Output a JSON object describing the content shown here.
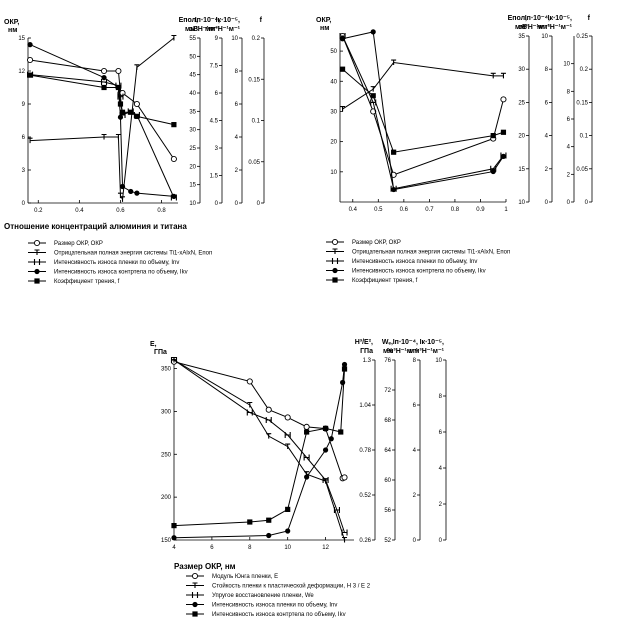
{
  "chart_data": [
    {
      "type": "line",
      "x": [
        0.16,
        0.52,
        0.59,
        0.6,
        0.61,
        0.65,
        0.68,
        0.86
      ],
      "xlabel": "Отношение концентраций алюминия и титана",
      "xticks": [
        0.2,
        0.4,
        0.6,
        0.8
      ],
      "xlim": [
        0.15,
        0.88
      ],
      "axes": [
        {
          "id": "okr",
          "label": "ОКР,",
          "unit": "нм",
          "ylim": [
            0,
            15
          ],
          "ticks": [
            0,
            3,
            6,
            9,
            12,
            15
          ]
        },
        {
          "id": "enop",
          "label": "Eпол,",
          "unit": "эВ",
          "ylim": [
            10,
            55
          ],
          "ticks": [
            10,
            15,
            20,
            25,
            30,
            35,
            40,
            45,
            50,
            55
          ]
        },
        {
          "id": "inv",
          "label": "Iп⋅10⁻⁴,",
          "unit": "мм³Н⁻¹м⁻¹",
          "ylim": [
            0,
            9
          ],
          "ticks": [
            0,
            1.5,
            3,
            4.5,
            6,
            7.5,
            9
          ]
        },
        {
          "id": "ikv",
          "label": "Iк⋅10⁻⁵,",
          "unit": "мм³Н⁻¹м⁻¹",
          "ylim": [
            0,
            10
          ],
          "ticks": [
            0,
            2,
            4,
            6,
            8,
            10
          ]
        },
        {
          "id": "f",
          "label": "f",
          "unit": "",
          "ylim": [
            0,
            0.2
          ],
          "ticks": [
            0,
            0.05,
            0.1,
            0.15,
            0.2
          ]
        }
      ],
      "series": [
        {
          "name": "Размер ОКР, ОКР",
          "axis": "okr",
          "marker": "open-circle",
          "points": [
            [
              0.16,
              13.0
            ],
            [
              0.52,
              12.0
            ],
            [
              0.59,
              12.0
            ],
            [
              0.6,
              10.0
            ],
            [
              0.61,
              10.0
            ],
            [
              0.68,
              9.0
            ],
            [
              0.86,
              4.0
            ]
          ]
        },
        {
          "name": "Отрицательная полная энергия системы Ti1-xAlxN, Eпоп",
          "axis": "enop",
          "marker": "tick",
          "points": [
            [
              0.16,
              27.0
            ],
            [
              0.52,
              28.0
            ],
            [
              0.59,
              28.0
            ],
            [
              0.6,
              12.0
            ],
            [
              0.61,
              11.0
            ],
            [
              0.68,
              47.0
            ],
            [
              0.86,
              55.0
            ]
          ]
        },
        {
          "name": "Интенсивность износа пленки по объему, Inv",
          "axis": "inv",
          "marker": "H",
          "points": [
            [
              0.16,
              7.0
            ],
            [
              0.52,
              6.6
            ],
            [
              0.59,
              6.4
            ],
            [
              0.6,
              5.8
            ],
            [
              0.61,
              4.8
            ],
            [
              0.65,
              5.0
            ],
            [
              0.68,
              4.8
            ],
            [
              0.86,
              0.3
            ]
          ]
        },
        {
          "name": "Интенсивность износа контртела по объему, Ikv",
          "axis": "ikv",
          "marker": "filled-circle",
          "points": [
            [
              0.16,
              9.6
            ],
            [
              0.52,
              7.6
            ],
            [
              0.59,
              7.0
            ],
            [
              0.6,
              5.2
            ],
            [
              0.61,
              1.0
            ],
            [
              0.65,
              0.7
            ],
            [
              0.68,
              0.6
            ],
            [
              0.86,
              0.4
            ]
          ]
        },
        {
          "name": "Коэффициент трения, f",
          "axis": "f",
          "marker": "filled-square",
          "points": [
            [
              0.16,
              0.155
            ],
            [
              0.52,
              0.14
            ],
            [
              0.59,
              0.14
            ],
            [
              0.6,
              0.12
            ],
            [
              0.61,
              0.11
            ],
            [
              0.65,
              0.11
            ],
            [
              0.68,
              0.105
            ],
            [
              0.86,
              0.095
            ]
          ]
        }
      ]
    },
    {
      "type": "line",
      "x": [
        0.36,
        0.48,
        0.56,
        0.95,
        0.99
      ],
      "xlabel": "",
      "xticks": [
        0.4,
        0.5,
        0.6,
        0.7,
        0.8,
        0.9,
        1
      ],
      "xlim": [
        0.35,
        1.0
      ],
      "axes": [
        {
          "id": "okr",
          "label": "ОКР,",
          "unit": "нм",
          "ylim": [
            0,
            55
          ],
          "ticks": [
            10,
            20,
            30,
            40,
            50
          ]
        },
        {
          "id": "enop",
          "label": "Eпол,",
          "unit": "эВ",
          "ylim": [
            10,
            35
          ],
          "ticks": [
            10,
            15,
            20,
            25,
            30,
            35
          ]
        },
        {
          "id": "inv",
          "label": "Iп⋅10⁻⁴,",
          "unit": "мм³Н⁻¹м⁻¹",
          "ylim": [
            0,
            10
          ],
          "ticks": [
            0,
            2,
            4,
            6,
            8,
            10
          ]
        },
        {
          "id": "ikv",
          "label": "Iк⋅10⁻⁵,",
          "unit": "мм³Н⁻¹м⁻¹",
          "ylim": [
            0,
            12
          ],
          "ticks": [
            0,
            2,
            4,
            6,
            8,
            10
          ]
        },
        {
          "id": "f",
          "label": "f",
          "unit": "",
          "ylim": [
            0,
            0.25
          ],
          "ticks": [
            0,
            0.05,
            0.1,
            0.15,
            0.2,
            0.25
          ]
        }
      ],
      "series": [
        {
          "name": "Размер ОКР, ОКР",
          "axis": "okr",
          "marker": "open-circle",
          "points": [
            [
              0.36,
              55.0
            ],
            [
              0.48,
              30.0
            ],
            [
              0.56,
              9.0
            ],
            [
              0.95,
              21.0
            ],
            [
              0.99,
              34.0
            ]
          ]
        },
        {
          "name": "Отрицательная полная энергия системы Ti1-xAlxN, Eпоп",
          "axis": "enop",
          "marker": "tick",
          "points": [
            [
              0.36,
              24.0
            ],
            [
              0.48,
              27.0
            ],
            [
              0.56,
              31.0
            ],
            [
              0.95,
              29.0
            ],
            [
              0.99,
              29.0
            ]
          ]
        },
        {
          "name": "Интенсивность износа пленки по объему, Inv",
          "axis": "inv",
          "marker": "H",
          "points": [
            [
              0.36,
              10.0
            ],
            [
              0.48,
              6.0
            ],
            [
              0.56,
              0.8
            ],
            [
              0.95,
              2.0
            ],
            [
              0.99,
              2.8
            ]
          ]
        },
        {
          "name": "Интенсивность износа контртела по объему, Ikv",
          "axis": "ikv",
          "marker": "filled-circle",
          "points": [
            [
              0.36,
              11.8
            ],
            [
              0.48,
              12.3
            ],
            [
              0.56,
              0.9
            ],
            [
              0.95,
              2.2
            ],
            [
              0.99,
              3.3
            ]
          ]
        },
        {
          "name": "Коэффициент трения, f",
          "axis": "f",
          "marker": "filled-square",
          "points": [
            [
              0.36,
              0.2
            ],
            [
              0.48,
              0.16
            ],
            [
              0.56,
              0.075
            ],
            [
              0.95,
              0.1
            ],
            [
              0.99,
              0.105
            ]
          ]
        }
      ]
    },
    {
      "type": "line",
      "x": [
        4,
        8,
        9,
        10,
        11,
        12,
        13
      ],
      "xlabel": "Размер ОКР, нм",
      "xticks": [
        4,
        6,
        8,
        10,
        12
      ],
      "xlim": [
        4,
        13.5
      ],
      "axes": [
        {
          "id": "E",
          "label": "E,",
          "unit": "ГПа",
          "ylim": [
            150,
            360
          ],
          "ticks": [
            150,
            200,
            250,
            300,
            350
          ]
        },
        {
          "id": "h3e2",
          "label": "H³/E²,",
          "unit": "ГПа",
          "ylim": [
            0.26,
            1.3
          ],
          "ticks": [
            0.26,
            0.52,
            0.78,
            1.04,
            1.3
          ]
        },
        {
          "id": "we",
          "label": "Wₑ,",
          "unit": "%",
          "ylim": [
            52,
            76
          ],
          "ticks": [
            52,
            56,
            60,
            64,
            68,
            72,
            76
          ]
        },
        {
          "id": "inv",
          "label": "Iп⋅10⁻⁴,",
          "unit": "мм³Н⁻¹м⁻¹",
          "ylim": [
            0,
            8
          ],
          "ticks": [
            0,
            2,
            4,
            6,
            8
          ]
        },
        {
          "id": "ikv",
          "label": "Iк⋅10⁻⁵,",
          "unit": "мм³Н⁻¹м⁻¹",
          "ylim": [
            0,
            10
          ],
          "ticks": [
            0,
            2,
            4,
            6,
            8,
            10
          ]
        }
      ],
      "series": [
        {
          "name": "Модуль Юнга пленки, E",
          "axis": "E",
          "marker": "open-circle",
          "points": [
            [
              4,
              358
            ],
            [
              8,
              335
            ],
            [
              9,
              302
            ],
            [
              10,
              293
            ],
            [
              11,
              282
            ],
            [
              12,
              280
            ],
            [
              12.9,
              222
            ],
            [
              13,
              223
            ]
          ]
        },
        {
          "name": "Стойкость пленки к пластической деформации, H 3 / E 2",
          "axis": "h3e2",
          "marker": "tick",
          "points": [
            [
              4,
              1.3
            ],
            [
              8,
              1.04
            ],
            [
              9,
              0.86
            ],
            [
              10,
              0.8
            ],
            [
              11,
              0.64
            ],
            [
              12,
              0.6
            ],
            [
              13,
              0.26
            ]
          ]
        },
        {
          "name": "Упругое восстановление пленки, We",
          "axis": "we",
          "marker": "H",
          "points": [
            [
              4,
              76
            ],
            [
              8,
              69
            ],
            [
              9,
              68
            ],
            [
              10,
              66
            ],
            [
              11,
              63
            ],
            [
              12,
              60
            ],
            [
              12.6,
              56
            ],
            [
              13,
              53
            ]
          ]
        },
        {
          "name": "Интенсивность износа пленки по объему, Inv",
          "axis": "inv",
          "marker": "filled-circle",
          "points": [
            [
              4,
              0.1
            ],
            [
              9,
              0.2
            ],
            [
              10,
              0.4
            ],
            [
              11,
              2.8
            ],
            [
              12,
              4.0
            ],
            [
              12.3,
              4.5
            ],
            [
              12.9,
              7.0
            ],
            [
              13,
              7.8
            ]
          ]
        },
        {
          "name": "Интенсивность износа контртела по объему, Ikv",
          "axis": "ikv",
          "marker": "filled-square",
          "points": [
            [
              4,
              0.8
            ],
            [
              8,
              1.0
            ],
            [
              9,
              1.1
            ],
            [
              10,
              1.7
            ],
            [
              11,
              6.0
            ],
            [
              12,
              6.2
            ],
            [
              12.8,
              6.0
            ],
            [
              13,
              9.5
            ]
          ]
        }
      ]
    }
  ],
  "legends": [
    {
      "title": "Отношение концентраций алюминия и титана",
      "items": [
        {
          "marker": "open-circle",
          "label": "Размер ОКР, ОКР"
        },
        {
          "marker": "tick",
          "label": "Отрицательная полная энергия системы Ti1-xAlxN, Eпоп"
        },
        {
          "marker": "H",
          "label": "Интенсивность износа пленки по объему, Inv"
        },
        {
          "marker": "filled-circle",
          "label": "Интенсивность износа контртела по объему, Ikv"
        },
        {
          "marker": "filled-square",
          "label": "Коэффициент трения, f"
        }
      ]
    },
    {
      "title": "",
      "items": [
        {
          "marker": "open-circle",
          "label": "Размер ОКР, ОКР"
        },
        {
          "marker": "tick",
          "label": "Отрицательная полная энергия системы Ti1-xAlxN, Eпоп"
        },
        {
          "marker": "H",
          "label": "Интенсивность износа пленки по объему, Inv"
        },
        {
          "marker": "filled-circle",
          "label": "Интенсивность износа контртела по объему, Ikv"
        },
        {
          "marker": "filled-square",
          "label": "Коэффициент трения, f"
        }
      ]
    },
    {
      "title": "",
      "items": [
        {
          "marker": "open-circle",
          "label": "Модуль Юнга пленки, E"
        },
        {
          "marker": "tick",
          "label": "Стойкость пленки к пластической деформации, H 3 / E 2"
        },
        {
          "marker": "H",
          "label": "Упругое восстановление пленки, We"
        },
        {
          "marker": "filled-circle",
          "label": "Интенсивность износа пленки по объему, Inv"
        },
        {
          "marker": "filled-square",
          "label": "Интенсивность износа контртела по объему, Ikv"
        }
      ]
    }
  ]
}
